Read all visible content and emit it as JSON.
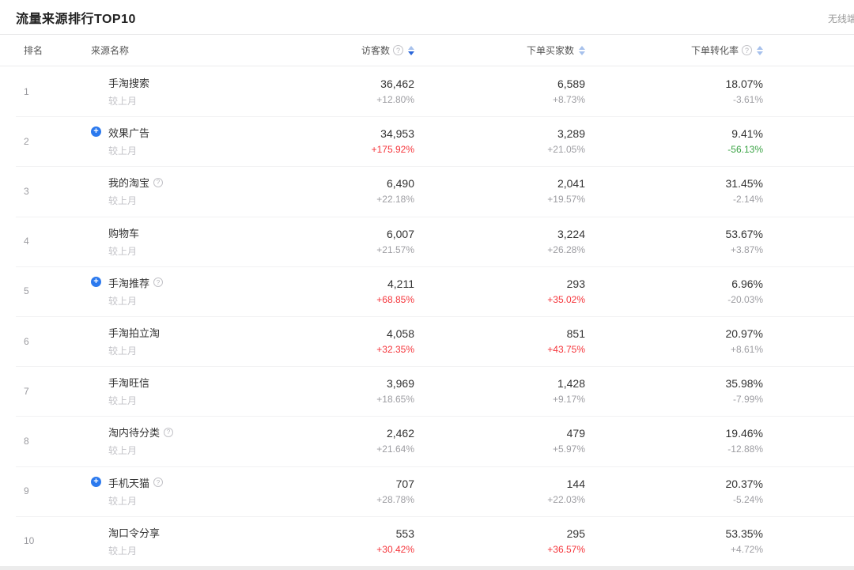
{
  "header": {
    "title": "流量来源排行TOP10",
    "top_right_label": "无线端"
  },
  "table": {
    "columns": [
      {
        "key": "rank",
        "label": "排名"
      },
      {
        "key": "source",
        "label": "来源名称"
      },
      {
        "key": "visitors",
        "label": "访客数",
        "help": true,
        "sort": "desc"
      },
      {
        "key": "buyers",
        "label": "下单买家数",
        "help": false,
        "sort": "none"
      },
      {
        "key": "conversion",
        "label": "下单转化率",
        "help": true,
        "sort": "none"
      }
    ],
    "compare_label": "较上月",
    "rows": [
      {
        "rank": "1",
        "name": "手淘搜索",
        "badge": false,
        "help": false,
        "visitors": "36,462",
        "visitors_change": "+12.80%",
        "visitors_trend": "neutral",
        "buyers": "6,589",
        "buyers_change": "+8.73%",
        "buyers_trend": "neutral",
        "conversion": "18.07%",
        "conversion_change": "-3.61%",
        "conversion_trend": "neutral"
      },
      {
        "rank": "2",
        "name": "效果广告",
        "badge": true,
        "help": false,
        "visitors": "34,953",
        "visitors_change": "+175.92%",
        "visitors_trend": "up",
        "buyers": "3,289",
        "buyers_change": "+21.05%",
        "buyers_trend": "neutral",
        "conversion": "9.41%",
        "conversion_change": "-56.13%",
        "conversion_trend": "down"
      },
      {
        "rank": "3",
        "name": "我的淘宝",
        "badge": false,
        "help": true,
        "visitors": "6,490",
        "visitors_change": "+22.18%",
        "visitors_trend": "neutral",
        "buyers": "2,041",
        "buyers_change": "+19.57%",
        "buyers_trend": "neutral",
        "conversion": "31.45%",
        "conversion_change": "-2.14%",
        "conversion_trend": "neutral"
      },
      {
        "rank": "4",
        "name": "购物车",
        "badge": false,
        "help": false,
        "visitors": "6,007",
        "visitors_change": "+21.57%",
        "visitors_trend": "neutral",
        "buyers": "3,224",
        "buyers_change": "+26.28%",
        "buyers_trend": "neutral",
        "conversion": "53.67%",
        "conversion_change": "+3.87%",
        "conversion_trend": "neutral"
      },
      {
        "rank": "5",
        "name": "手淘推荐",
        "badge": true,
        "help": true,
        "visitors": "4,211",
        "visitors_change": "+68.85%",
        "visitors_trend": "up",
        "buyers": "293",
        "buyers_change": "+35.02%",
        "buyers_trend": "up",
        "conversion": "6.96%",
        "conversion_change": "-20.03%",
        "conversion_trend": "neutral"
      },
      {
        "rank": "6",
        "name": "手淘拍立淘",
        "badge": false,
        "help": false,
        "visitors": "4,058",
        "visitors_change": "+32.35%",
        "visitors_trend": "up",
        "buyers": "851",
        "buyers_change": "+43.75%",
        "buyers_trend": "up",
        "conversion": "20.97%",
        "conversion_change": "+8.61%",
        "conversion_trend": "neutral"
      },
      {
        "rank": "7",
        "name": "手淘旺信",
        "badge": false,
        "help": false,
        "visitors": "3,969",
        "visitors_change": "+18.65%",
        "visitors_trend": "neutral",
        "buyers": "1,428",
        "buyers_change": "+9.17%",
        "buyers_trend": "neutral",
        "conversion": "35.98%",
        "conversion_change": "-7.99%",
        "conversion_trend": "neutral"
      },
      {
        "rank": "8",
        "name": "淘内待分类",
        "badge": false,
        "help": true,
        "visitors": "2,462",
        "visitors_change": "+21.64%",
        "visitors_trend": "neutral",
        "buyers": "479",
        "buyers_change": "+5.97%",
        "buyers_trend": "neutral",
        "conversion": "19.46%",
        "conversion_change": "-12.88%",
        "conversion_trend": "neutral"
      },
      {
        "rank": "9",
        "name": "手机天猫",
        "badge": true,
        "help": true,
        "visitors": "707",
        "visitors_change": "+28.78%",
        "visitors_trend": "neutral",
        "buyers": "144",
        "buyers_change": "+22.03%",
        "buyers_trend": "neutral",
        "conversion": "20.37%",
        "conversion_change": "-5.24%",
        "conversion_trend": "neutral"
      },
      {
        "rank": "10",
        "name": "淘口令分享",
        "badge": false,
        "help": false,
        "visitors": "553",
        "visitors_change": "+30.42%",
        "visitors_trend": "up",
        "buyers": "295",
        "buyers_change": "+36.57%",
        "buyers_trend": "up",
        "conversion": "53.35%",
        "conversion_change": "+4.72%",
        "conversion_trend": "neutral"
      }
    ]
  },
  "colors": {
    "accent_blue": "#2b79ee",
    "sort_active_blue": "#2a66d9",
    "sort_inactive_blue": "#a7c1ec",
    "up_red": "#f5353b",
    "down_green": "#3ba345",
    "neutral_grey": "#9d9da2"
  }
}
